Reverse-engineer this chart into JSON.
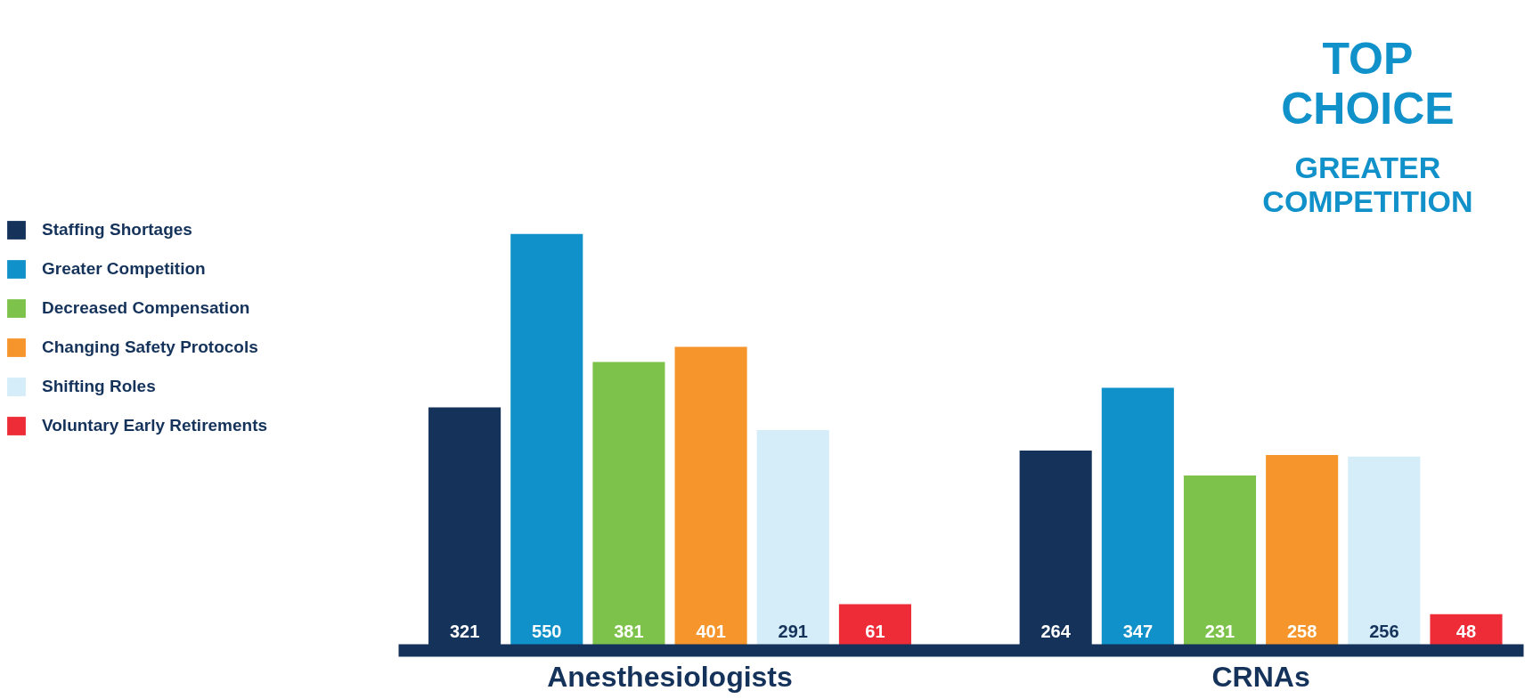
{
  "chart_data": {
    "type": "bar",
    "categories": [
      "Anesthesiologists",
      "CRNAs"
    ],
    "series": [
      {
        "name": "Staffing Shortages",
        "color": "#14325a",
        "values": [
          321,
          264
        ]
      },
      {
        "name": "Greater Competition",
        "color": "#1191c9",
        "values": [
          550,
          347
        ]
      },
      {
        "name": "Decreased Compensation",
        "color": "#7dc24a",
        "values": [
          381,
          231
        ]
      },
      {
        "name": "Changing Safety Protocols",
        "color": "#f6952b",
        "values": [
          401,
          258
        ]
      },
      {
        "name": "Shifting Roles",
        "color": "#d5ecf9",
        "values": [
          291,
          256
        ]
      },
      {
        "name": "Voluntary Early Retirements",
        "color": "#ee2c37",
        "values": [
          61,
          48
        ]
      }
    ],
    "data_labels": true,
    "legend": "left",
    "grid": false,
    "annotations": [
      "TOP CHOICE",
      "GREATER COMPETITION"
    ]
  }
}
